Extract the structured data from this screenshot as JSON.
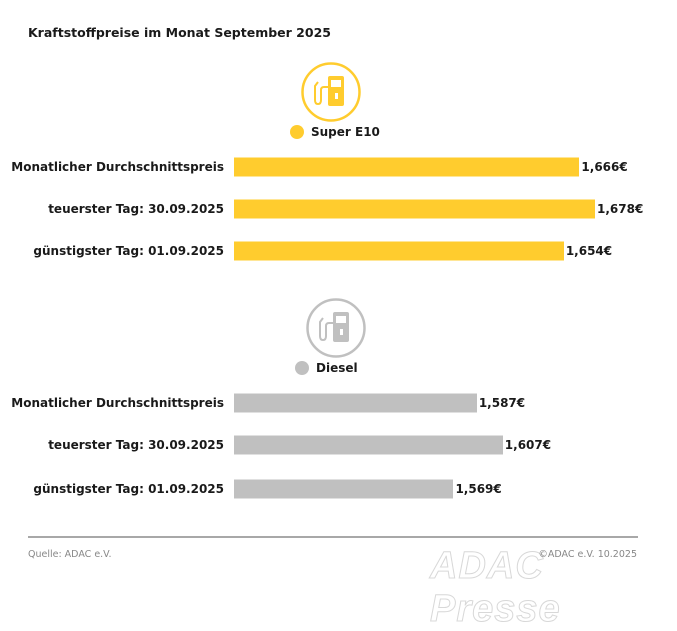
{
  "chart_data": {
    "type": "bar",
    "orientation": "horizontal",
    "title": "Kraftstoffpreise im Monat September 2025",
    "categories": [
      "Monatlicher Durchschnittspreis",
      "teuerster Tag: 30.09.2025",
      "günstigster Tag: 01.09.2025"
    ],
    "unit": "€",
    "xlim": [
      1.4,
      1.678
    ],
    "groups": [
      {
        "name": "Super E10",
        "color": "#FFCC2E",
        "icon": "fuel-pump-icon",
        "values": [
          1.666,
          1.678,
          1.654
        ],
        "labels": [
          "1,666€",
          "1,678€",
          "1,654€"
        ]
      },
      {
        "name": "Diesel",
        "color": "#C0C0C0",
        "icon": "fuel-pump-icon",
        "values": [
          1.587,
          1.607,
          1.569
        ],
        "labels": [
          "1,587€",
          "1,607€",
          "1,569€"
        ]
      }
    ]
  },
  "footer": {
    "source": "Quelle: ADAC e.V.",
    "copyright": "©ADAC e.V. 10.2025",
    "watermark": "ADAC Presse"
  }
}
